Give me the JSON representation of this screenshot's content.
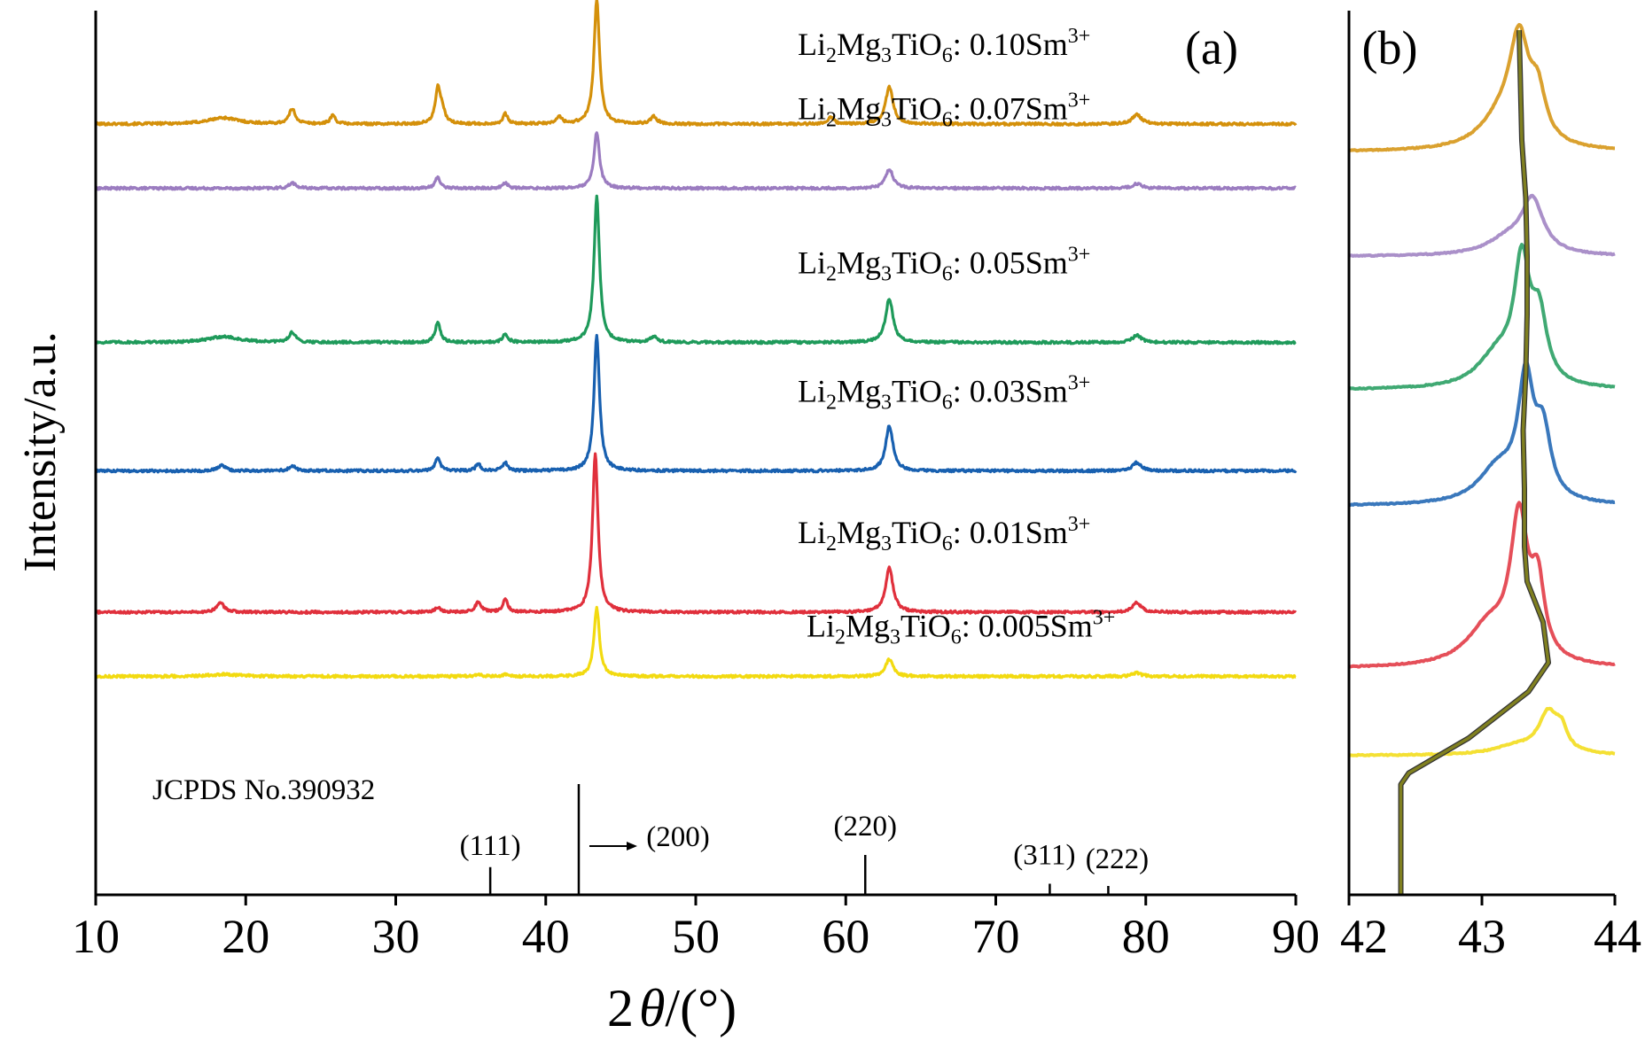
{
  "chart_data": [
    {
      "type": "line",
      "panel_label": "(a)",
      "ylabel": "Intensity/a.u.",
      "xlabel_prefix": "2",
      "xlabel_symbol": "θ",
      "xlabel_suffix": "/(°)",
      "xlim": [
        10,
        90
      ],
      "xticks": [
        10,
        20,
        30,
        40,
        50,
        60,
        70,
        80,
        90
      ],
      "series": [
        {
          "name": "Li2Mg3TiO6: 0.10Sm3+",
          "label_base": "Li",
          "label_conc": ": 0.10Sm",
          "color": "#D4900A",
          "baseline": 6.0,
          "peak_scale": 1.0,
          "peaks": [
            [
              18.5,
              0.05,
              1.2
            ],
            [
              23.1,
              0.12,
              0.25
            ],
            [
              25.8,
              0.07,
              0.2
            ],
            [
              32.8,
              0.28,
              0.2
            ],
            [
              33.1,
              0.1,
              0.2
            ],
            [
              37.3,
              0.08,
              0.2
            ],
            [
              40.9,
              0.06,
              0.2
            ],
            [
              43.4,
              1.0,
              0.22
            ],
            [
              47.2,
              0.06,
              0.25
            ],
            [
              59.0,
              0.05,
              0.25
            ],
            [
              62.9,
              0.3,
              0.3
            ],
            [
              79.4,
              0.08,
              0.35
            ]
          ]
        },
        {
          "name": "Li2Mg3TiO6: 0.07Sm3+",
          "label_base": "Li",
          "label_conc": ": 0.07Sm",
          "color": "#9B7CC0",
          "baseline": 5.5,
          "peak_scale": 0.45,
          "peaks": [
            [
              23.1,
              0.1,
              0.25
            ],
            [
              32.8,
              0.2,
              0.2
            ],
            [
              37.3,
              0.1,
              0.2
            ],
            [
              43.4,
              1.0,
              0.22
            ],
            [
              62.9,
              0.35,
              0.3
            ],
            [
              79.4,
              0.08,
              0.35
            ]
          ]
        },
        {
          "name": "Li2Mg3TiO6: 0.05Sm3+",
          "label_base": "Li",
          "label_conc": ": 0.05Sm",
          "color": "#1E9A5A",
          "baseline": 4.3,
          "peak_scale": 1.17,
          "peaks": [
            [
              18.5,
              0.04,
              1.2
            ],
            [
              23.1,
              0.07,
              0.25
            ],
            [
              32.8,
              0.14,
              0.2
            ],
            [
              37.3,
              0.06,
              0.2
            ],
            [
              43.4,
              1.0,
              0.22
            ],
            [
              47.2,
              0.04,
              0.25
            ],
            [
              62.9,
              0.3,
              0.3
            ],
            [
              79.4,
              0.05,
              0.35
            ]
          ]
        },
        {
          "name": "Li2Mg3TiO6: 0.03Sm3+",
          "label_base": "Li",
          "label_conc": ": 0.03Sm",
          "color": "#1860B0",
          "baseline": 3.3,
          "peak_scale": 1.09,
          "peaks": [
            [
              18.4,
              0.04,
              0.3
            ],
            [
              23.1,
              0.04,
              0.25
            ],
            [
              32.8,
              0.1,
              0.2
            ],
            [
              35.5,
              0.05,
              0.2
            ],
            [
              37.3,
              0.06,
              0.2
            ],
            [
              43.4,
              1.0,
              0.22
            ],
            [
              62.9,
              0.33,
              0.3
            ],
            [
              79.4,
              0.06,
              0.35
            ]
          ]
        },
        {
          "name": "Li2Mg3TiO6: 0.01Sm3+",
          "label_base": "Li",
          "label_conc": ": 0.01Sm",
          "color": "#E0303C",
          "baseline": 2.2,
          "peak_scale": 1.28,
          "peaks": [
            [
              18.3,
              0.06,
              0.3
            ],
            [
              32.8,
              0.03,
              0.2
            ],
            [
              35.5,
              0.06,
              0.25
            ],
            [
              37.3,
              0.08,
              0.2
            ],
            [
              43.3,
              1.0,
              0.22
            ],
            [
              62.9,
              0.28,
              0.3
            ],
            [
              79.4,
              0.06,
              0.35
            ]
          ]
        },
        {
          "name": "Li2Mg3TiO6: 0.005Sm3+",
          "label_base": "Li",
          "label_conc": ": 0.005Sm",
          "color": "#F2DA10",
          "baseline": 1.7,
          "peak_scale": 0.55,
          "peaks": [
            [
              18.5,
              0.03,
              1.2
            ],
            [
              35.5,
              0.03,
              0.2
            ],
            [
              37.3,
              0.03,
              0.2
            ],
            [
              43.4,
              1.0,
              0.22
            ],
            [
              62.9,
              0.25,
              0.3
            ],
            [
              79.4,
              0.05,
              0.35
            ]
          ]
        }
      ],
      "reference": {
        "name": "JCPDS No.390932",
        "lines": [
          {
            "hkl": "(111)",
            "x": 36.3,
            "height": 0.25
          },
          {
            "hkl": "(200)",
            "x": 42.2,
            "height": 1.0
          },
          {
            "hkl": "(220)",
            "x": 61.3,
            "height": 0.36
          },
          {
            "hkl": "(311)",
            "x": 73.6,
            "height": 0.1
          },
          {
            "hkl": "(222)",
            "x": 77.5,
            "height": 0.08
          }
        ]
      }
    },
    {
      "type": "line",
      "panel_label": "(b)",
      "xlim": [
        42,
        44
      ],
      "xticks": [
        42,
        43,
        44
      ],
      "series": [
        {
          "color": "#D4900A",
          "baseline": 6.4,
          "peak_scale": 0.85,
          "peaks": [
            [
              43.28,
              1.0,
              0.09
            ],
            [
              43.42,
              0.45,
              0.07
            ],
            [
              43.15,
              0.3,
              0.2
            ]
          ]
        },
        {
          "color": "#9B7CC0",
          "baseline": 5.5,
          "peak_scale": 0.45,
          "peaks": [
            [
              43.38,
              1.0,
              0.1
            ],
            [
              43.2,
              0.3,
              0.2
            ]
          ]
        },
        {
          "color": "#1E9A5A",
          "baseline": 4.35,
          "peak_scale": 1.0,
          "peaks": [
            [
              43.3,
              1.0,
              0.07
            ],
            [
              43.43,
              0.55,
              0.07
            ],
            [
              43.12,
              0.28,
              0.18
            ]
          ]
        },
        {
          "color": "#1860B0",
          "baseline": 3.35,
          "peak_scale": 1.0,
          "peaks": [
            [
              43.33,
              1.0,
              0.07
            ],
            [
              43.46,
              0.55,
              0.07
            ],
            [
              43.12,
              0.3,
              0.18
            ]
          ]
        },
        {
          "color": "#E0303C",
          "baseline": 1.95,
          "peak_scale": 1.2,
          "peaks": [
            [
              43.28,
              1.0,
              0.08
            ],
            [
              43.42,
              0.5,
              0.06
            ],
            [
              43.05,
              0.28,
              0.2
            ]
          ]
        },
        {
          "color": "#F2DA10",
          "baseline": 1.2,
          "peak_scale": 0.35,
          "peaks": [
            [
              43.5,
              1.0,
              0.09
            ],
            [
              43.6,
              0.45,
              0.05
            ],
            [
              43.25,
              0.2,
              0.2
            ]
          ]
        }
      ],
      "shift_guide": {
        "color": "#808020",
        "points": [
          [
            42.39,
            0.0
          ],
          [
            42.39,
            0.95
          ],
          [
            42.45,
            1.05
          ],
          [
            42.9,
            1.35
          ],
          [
            43.35,
            1.75
          ],
          [
            43.5,
            2.0
          ],
          [
            43.46,
            2.35
          ],
          [
            43.34,
            2.7
          ],
          [
            43.32,
            3.0
          ],
          [
            43.32,
            3.5
          ],
          [
            43.31,
            4.0
          ],
          [
            43.33,
            4.5
          ],
          [
            43.34,
            5.0
          ],
          [
            43.34,
            5.5
          ],
          [
            43.33,
            6.0
          ],
          [
            43.3,
            6.5
          ],
          [
            43.28,
            7.45
          ]
        ]
      }
    }
  ]
}
